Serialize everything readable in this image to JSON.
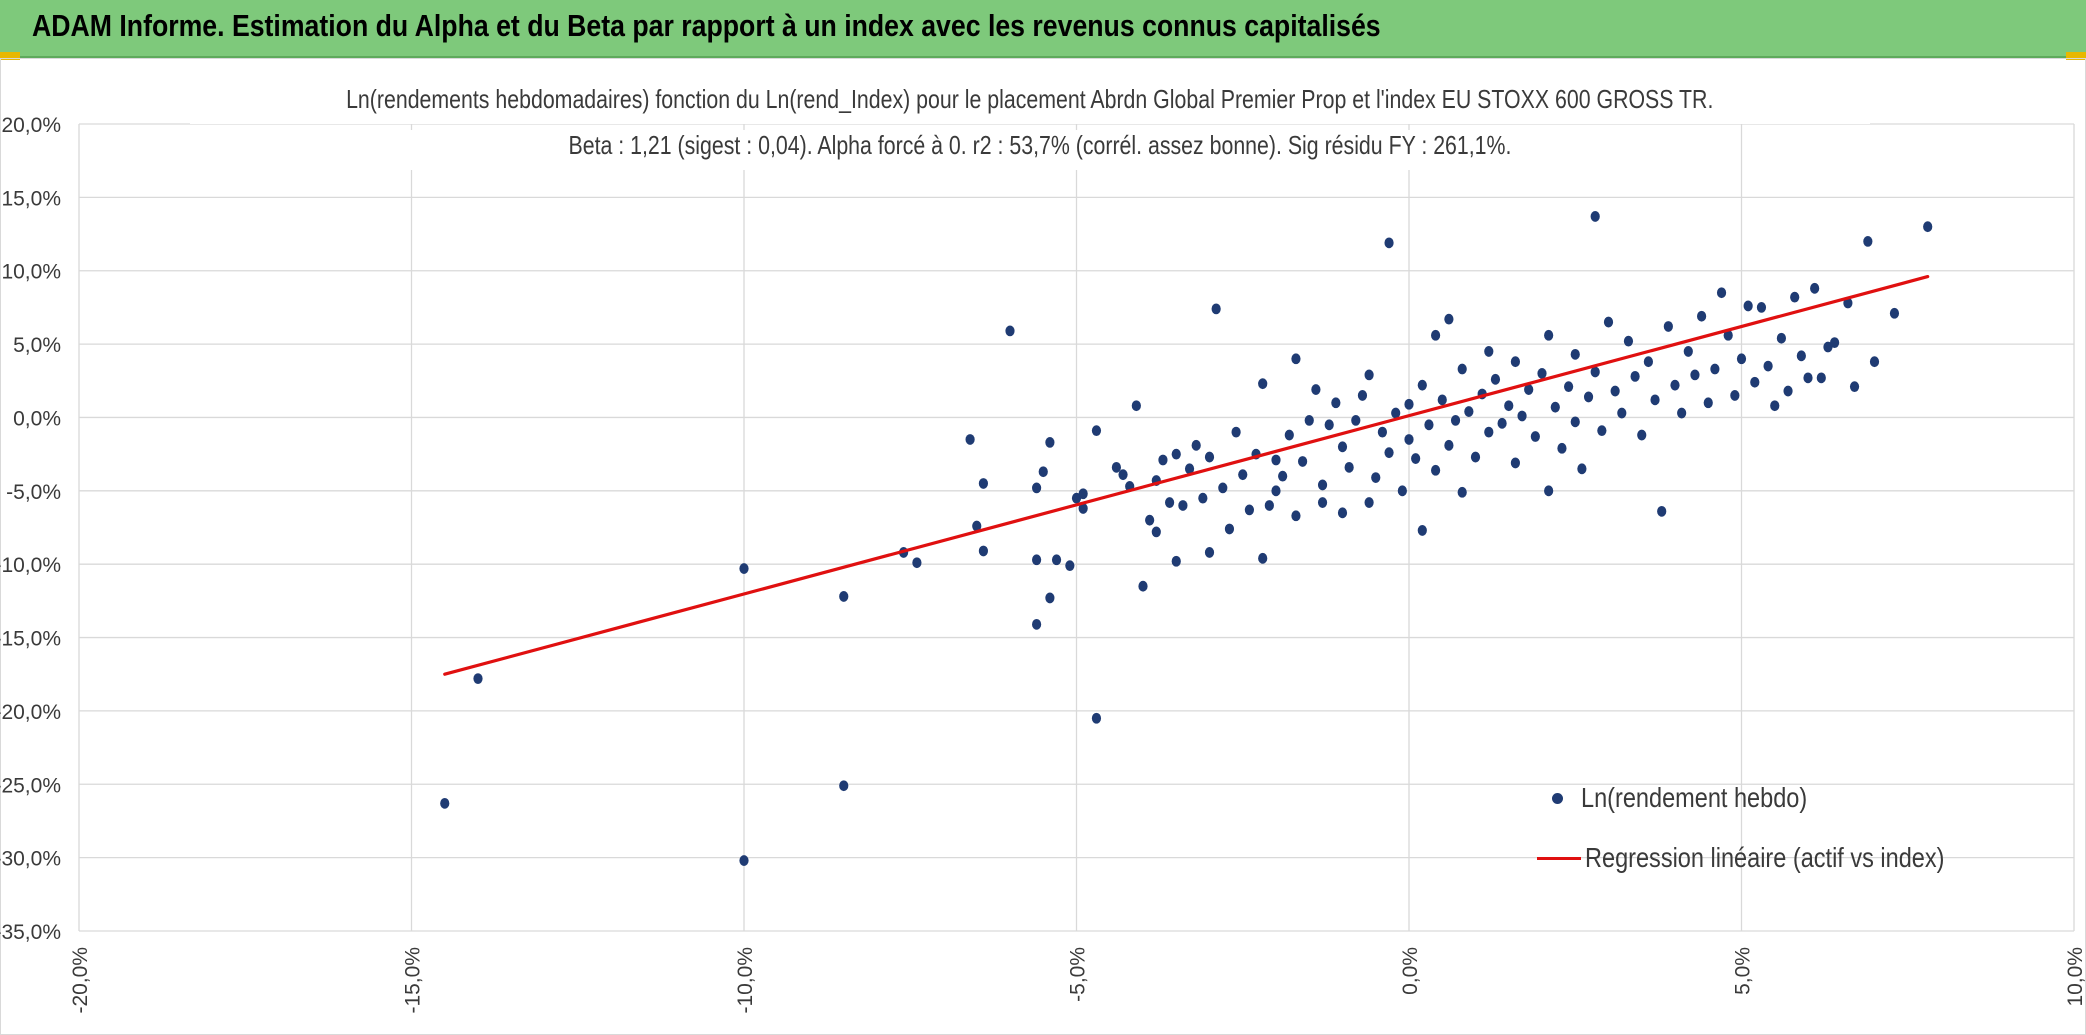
{
  "header": {
    "title": "ADAM Informe. Estimation du Alpha et du Beta par rapport à un index avec les revenus connus capitalisés"
  },
  "chart_data": {
    "type": "scatter",
    "title": "Ln(rendements hebdomadaires) fonction du Ln(rend_Index) pour le placement Abrdn Global Premier Prop et l'index EU STOXX 600 GROSS TR.",
    "subtitle": "Beta : 1,21 (sigest : 0,04). Alpha forcé à 0. r2 : 53,7% (corrél. assez bonne). Sig résidu FY : 261,1%.",
    "xlabel": "",
    "ylabel": "",
    "xlim": [
      -0.2,
      0.1
    ],
    "ylim": [
      -0.35,
      0.2
    ],
    "x_ticks": [
      "-20,0%",
      "-15,0%",
      "-10,0%",
      "-5,0%",
      "0,0%",
      "5,0%",
      "10,0%"
    ],
    "y_ticks": [
      "20,0%",
      "15,0%",
      "10,0%",
      "5,0%",
      "0,0%",
      "-5,0%",
      "-10,0%",
      "-15,0%",
      "-20,0%",
      "-25,0%",
      "-30,0%",
      "-35,0%"
    ],
    "grid": true,
    "legend_position": "bottom-right",
    "series": [
      {
        "name": "Ln(rendement hebdo)",
        "kind": "scatter",
        "color": "#1f3b73",
        "points": [
          [
            -0.145,
            -0.263
          ],
          [
            -0.14,
            -0.178
          ],
          [
            -0.1,
            -0.302
          ],
          [
            -0.1,
            -0.103
          ],
          [
            -0.085,
            -0.251
          ],
          [
            -0.085,
            -0.122
          ],
          [
            -0.076,
            -0.092
          ],
          [
            -0.074,
            -0.099
          ],
          [
            -0.066,
            -0.015
          ],
          [
            -0.065,
            -0.074
          ],
          [
            -0.064,
            -0.091
          ],
          [
            -0.064,
            -0.045
          ],
          [
            -0.06,
            0.059
          ],
          [
            -0.056,
            -0.141
          ],
          [
            -0.056,
            -0.097
          ],
          [
            -0.056,
            -0.048
          ],
          [
            -0.055,
            -0.037
          ],
          [
            -0.054,
            -0.123
          ],
          [
            -0.054,
            -0.017
          ],
          [
            -0.053,
            -0.097
          ],
          [
            -0.051,
            -0.101
          ],
          [
            -0.05,
            -0.055
          ],
          [
            -0.049,
            -0.052
          ],
          [
            -0.049,
            -0.062
          ],
          [
            -0.047,
            -0.205
          ],
          [
            -0.047,
            -0.009
          ],
          [
            -0.044,
            -0.034
          ],
          [
            -0.043,
            -0.039
          ],
          [
            -0.042,
            -0.047
          ],
          [
            -0.041,
            0.008
          ],
          [
            -0.04,
            -0.115
          ],
          [
            -0.039,
            -0.07
          ],
          [
            -0.038,
            -0.078
          ],
          [
            -0.038,
            -0.043
          ],
          [
            -0.037,
            -0.029
          ],
          [
            -0.036,
            -0.058
          ],
          [
            -0.035,
            -0.025
          ],
          [
            -0.035,
            -0.098
          ],
          [
            -0.034,
            -0.06
          ],
          [
            -0.033,
            -0.035
          ],
          [
            -0.032,
            -0.019
          ],
          [
            -0.031,
            -0.055
          ],
          [
            -0.03,
            -0.027
          ],
          [
            -0.03,
            -0.092
          ],
          [
            -0.029,
            0.074
          ],
          [
            -0.028,
            -0.048
          ],
          [
            -0.027,
            -0.076
          ],
          [
            -0.026,
            -0.01
          ],
          [
            -0.025,
            -0.039
          ],
          [
            -0.024,
            -0.063
          ],
          [
            -0.023,
            -0.025
          ],
          [
            -0.022,
            0.023
          ],
          [
            -0.022,
            -0.096
          ],
          [
            -0.021,
            -0.06
          ],
          [
            -0.02,
            -0.05
          ],
          [
            -0.02,
            -0.029
          ],
          [
            -0.019,
            -0.04
          ],
          [
            -0.018,
            -0.012
          ],
          [
            -0.017,
            0.04
          ],
          [
            -0.017,
            -0.067
          ],
          [
            -0.016,
            -0.03
          ],
          [
            -0.015,
            -0.002
          ],
          [
            -0.014,
            0.019
          ],
          [
            -0.013,
            -0.058
          ],
          [
            -0.013,
            -0.046
          ],
          [
            -0.012,
            -0.005
          ],
          [
            -0.011,
            0.01
          ],
          [
            -0.01,
            -0.065
          ],
          [
            -0.01,
            -0.02
          ],
          [
            -0.009,
            -0.034
          ],
          [
            -0.008,
            -0.002
          ],
          [
            -0.007,
            0.015
          ],
          [
            -0.006,
            -0.058
          ],
          [
            -0.006,
            0.029
          ],
          [
            -0.005,
            -0.041
          ],
          [
            -0.004,
            -0.01
          ],
          [
            -0.003,
            0.119
          ],
          [
            -0.003,
            -0.024
          ],
          [
            -0.002,
            0.003
          ],
          [
            -0.001,
            -0.05
          ],
          [
            0.0,
            -0.015
          ],
          [
            0.0,
            0.009
          ],
          [
            0.001,
            -0.028
          ],
          [
            0.002,
            0.022
          ],
          [
            0.002,
            -0.077
          ],
          [
            0.003,
            -0.005
          ],
          [
            0.004,
            0.056
          ],
          [
            0.004,
            -0.036
          ],
          [
            0.005,
            0.012
          ],
          [
            0.006,
            0.067
          ],
          [
            0.006,
            -0.019
          ],
          [
            0.007,
            -0.002
          ],
          [
            0.008,
            0.033
          ],
          [
            0.008,
            -0.051
          ],
          [
            0.009,
            0.004
          ],
          [
            0.01,
            -0.027
          ],
          [
            0.011,
            0.016
          ],
          [
            0.012,
            0.045
          ],
          [
            0.012,
            -0.01
          ],
          [
            0.013,
            0.026
          ],
          [
            0.014,
            -0.004
          ],
          [
            0.015,
            0.008
          ],
          [
            0.016,
            -0.031
          ],
          [
            0.016,
            0.038
          ],
          [
            0.017,
            0.001
          ],
          [
            0.018,
            0.019
          ],
          [
            0.019,
            -0.013
          ],
          [
            0.02,
            0.03
          ],
          [
            0.021,
            -0.05
          ],
          [
            0.021,
            0.056
          ],
          [
            0.022,
            0.007
          ],
          [
            0.023,
            -0.021
          ],
          [
            0.024,
            0.021
          ],
          [
            0.025,
            0.043
          ],
          [
            0.025,
            -0.003
          ],
          [
            0.026,
            -0.035
          ],
          [
            0.027,
            0.014
          ],
          [
            0.028,
            0.137
          ],
          [
            0.028,
            0.031
          ],
          [
            0.029,
            -0.009
          ],
          [
            0.03,
            0.065
          ],
          [
            0.031,
            0.018
          ],
          [
            0.032,
            0.003
          ],
          [
            0.033,
            0.052
          ],
          [
            0.034,
            0.028
          ],
          [
            0.035,
            -0.012
          ],
          [
            0.036,
            0.038
          ],
          [
            0.037,
            0.012
          ],
          [
            0.038,
            -0.064
          ],
          [
            0.039,
            0.062
          ],
          [
            0.04,
            0.022
          ],
          [
            0.041,
            0.003
          ],
          [
            0.042,
            0.045
          ],
          [
            0.043,
            0.029
          ],
          [
            0.044,
            0.069
          ],
          [
            0.045,
            0.01
          ],
          [
            0.046,
            0.033
          ],
          [
            0.047,
            0.085
          ],
          [
            0.048,
            0.056
          ],
          [
            0.049,
            0.015
          ],
          [
            0.05,
            0.04
          ],
          [
            0.051,
            0.076
          ],
          [
            0.052,
            0.024
          ],
          [
            0.053,
            0.075
          ],
          [
            0.054,
            0.035
          ],
          [
            0.055,
            0.008
          ],
          [
            0.056,
            0.054
          ],
          [
            0.057,
            0.018
          ],
          [
            0.058,
            0.082
          ],
          [
            0.059,
            0.042
          ],
          [
            0.06,
            0.027
          ],
          [
            0.061,
            0.088
          ],
          [
            0.062,
            0.027
          ],
          [
            0.063,
            0.048
          ],
          [
            0.064,
            0.051
          ],
          [
            0.066,
            0.078
          ],
          [
            0.067,
            0.021
          ],
          [
            0.069,
            0.12
          ],
          [
            0.07,
            0.038
          ],
          [
            0.073,
            0.071
          ],
          [
            0.078,
            0.13
          ]
        ]
      },
      {
        "name": "Regression linéaire (actif vs index)",
        "kind": "line",
        "color": "#e01010",
        "points": [
          [
            -0.145,
            -0.175
          ],
          [
            0.078,
            0.096
          ]
        ]
      }
    ]
  }
}
